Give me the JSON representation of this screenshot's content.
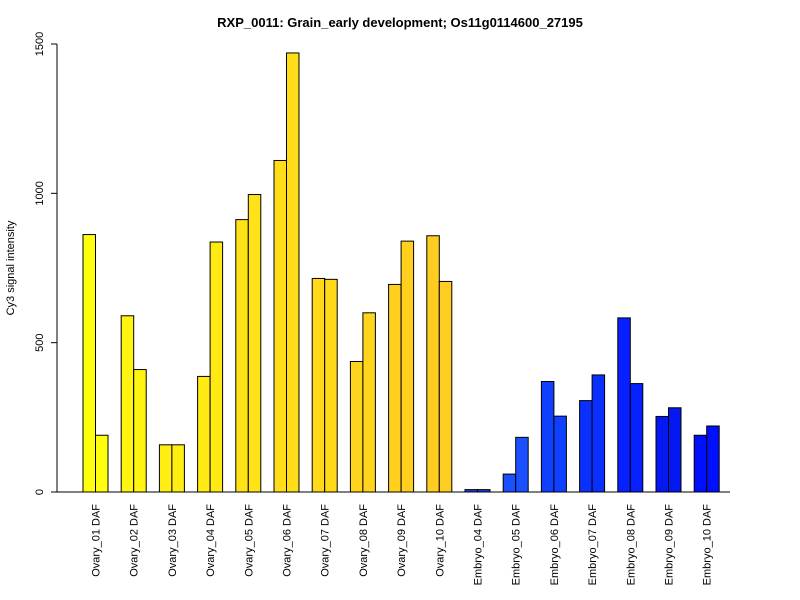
{
  "chart_data": {
    "type": "bar",
    "title": "RXP_0011: Grain_early development; Os11g0114600_27195",
    "ylabel": "Cy3 signal intensity",
    "xlabel": "",
    "ylim": [
      0,
      1500
    ],
    "yticks": [
      0,
      500,
      1000,
      1500
    ],
    "grid": false,
    "categories": [
      "Ovary_01 DAF",
      "Ovary_02 DAF",
      "Ovary_03 DAF",
      "Ovary_04 DAF",
      "Ovary_05 DAF",
      "Ovary_06 DAF",
      "Ovary_07 DAF",
      "Ovary_08 DAF",
      "Ovary_09 DAF",
      "Ovary_10 DAF",
      "Embryo_04 DAF",
      "Embryo_05 DAF",
      "Embryo_06 DAF",
      "Embryo_07 DAF",
      "Embryo_08 DAF",
      "Embryo_09 DAF",
      "Embryo_10 DAF"
    ],
    "values": [
      [
        862,
        190
      ],
      [
        590,
        410
      ],
      [
        158,
        158
      ],
      [
        387,
        837
      ],
      [
        912,
        996
      ],
      [
        1110,
        1470
      ],
      [
        715,
        712
      ],
      [
        437,
        600
      ],
      [
        695,
        840
      ],
      [
        858,
        705
      ],
      [
        8,
        8
      ],
      [
        60,
        183
      ],
      [
        370,
        254
      ],
      [
        306,
        392
      ],
      [
        583,
        363
      ],
      [
        253,
        282
      ],
      [
        190,
        221
      ]
    ],
    "colors": [
      "#ffff0d",
      "#fff510",
      "#ffee12",
      "#ffea14",
      "#ffe217",
      "#ffdd18",
      "#ffd91a",
      "#ffd41c",
      "#ffd01e",
      "#ffcd20",
      "#1e3ce0",
      "#1a50ff",
      "#1040ff",
      "#0a30ff",
      "#0620ff",
      "#0418f0",
      "#0010ff"
    ]
  }
}
